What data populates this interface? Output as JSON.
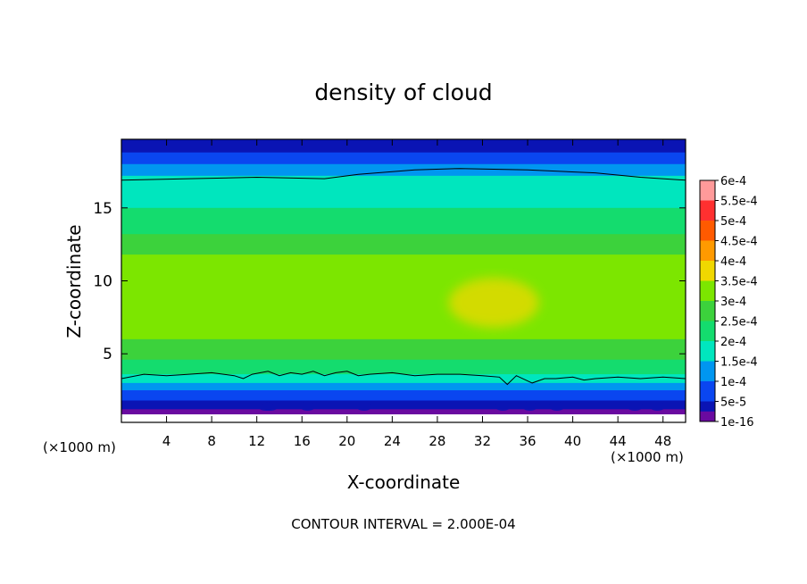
{
  "chart_data": {
    "type": "heatmap",
    "title": "density of cloud",
    "xlabel": "X-coordinate",
    "ylabel": "Z-coordinate",
    "x_unit_left": "(×1000 m)",
    "x_unit_right": "(×1000 m)",
    "xlim": [
      0,
      50
    ],
    "ylim": [
      0.3,
      19.7
    ],
    "x_ticks": [
      4,
      8,
      12,
      16,
      20,
      24,
      28,
      32,
      36,
      40,
      44,
      48
    ],
    "y_ticks": [
      5,
      10,
      15
    ],
    "footer": "CONTOUR INTERVAL = 2.000E-04",
    "colorbar": {
      "labels": [
        "6e-4",
        "5.5e-4",
        "5e-4",
        "4.5e-4",
        "4e-4",
        "3.5e-4",
        "3e-4",
        "2.5e-4",
        "2e-4",
        "1.5e-4",
        "1e-4",
        "5e-5",
        "1e-16"
      ],
      "colors": [
        "#ff9a9a",
        "#ff3030",
        "#ff5a00",
        "#ff9a00",
        "#f0d800",
        "#7ce600",
        "#3cd23c",
        "#14dc6e",
        "#00e6be",
        "#0096f0",
        "#0a46f0",
        "#0a14b4",
        "#6a0aa0"
      ],
      "levels": [
        0.0006,
        0.00055,
        0.0005,
        0.00045,
        0.0004,
        0.00035,
        0.0003,
        0.00025,
        0.0002,
        0.00015,
        0.0001,
        5e-05,
        1e-16
      ]
    },
    "field_bands": [
      {
        "z_from": 19.7,
        "z_to": 18.8,
        "value": 5e-05
      },
      {
        "z_from": 18.8,
        "z_to": 18.0,
        "value": 0.0001
      },
      {
        "z_from": 18.0,
        "z_to": 17.2,
        "value": 0.00015
      },
      {
        "z_from": 17.2,
        "z_to": 15.0,
        "value": 0.0002
      },
      {
        "z_from": 15.0,
        "z_to": 13.2,
        "value": 0.00025
      },
      {
        "z_from": 13.2,
        "z_to": 11.8,
        "value": 0.0003
      },
      {
        "z_from": 11.8,
        "z_to": 6.0,
        "value": 0.00035
      },
      {
        "z_from": 6.0,
        "z_to": 4.6,
        "value": 0.0003
      },
      {
        "z_from": 4.6,
        "z_to": 3.6,
        "value": 0.00025
      },
      {
        "z_from": 3.6,
        "z_to": 3.0,
        "value": 0.0002
      },
      {
        "z_from": 3.0,
        "z_to": 2.5,
        "value": 0.00015
      },
      {
        "z_from": 2.5,
        "z_to": 1.8,
        "value": 0.0001
      },
      {
        "z_from": 1.8,
        "z_to": 1.2,
        "value": 5e-05
      },
      {
        "z_from": 1.2,
        "z_to": 0.85,
        "value": 1e-16
      }
    ],
    "local_max_region": {
      "x_center": 33,
      "z_center": 8.5,
      "x_radius": 4,
      "z_radius": 1.7,
      "value": 0.0004
    },
    "upper_contour": {
      "value": 0.0002,
      "x": [
        0,
        6,
        12,
        18,
        21,
        26,
        30,
        36,
        42,
        46,
        50
      ],
      "z": [
        16.9,
        17.0,
        17.1,
        17.0,
        17.3,
        17.6,
        17.7,
        17.6,
        17.4,
        17.1,
        16.9
      ]
    },
    "lower_contour": {
      "value": 0.0002,
      "x": [
        0,
        2,
        4,
        6,
        8,
        10,
        10.8,
        11.6,
        13,
        14,
        15,
        16,
        17,
        18,
        19,
        20,
        21,
        22,
        24,
        26,
        28,
        30,
        32,
        33.5,
        34.2,
        35,
        36.4,
        37.5,
        38.5,
        40,
        41,
        42,
        44,
        46,
        48,
        50
      ],
      "z": [
        3.3,
        3.6,
        3.5,
        3.6,
        3.7,
        3.5,
        3.3,
        3.6,
        3.8,
        3.5,
        3.7,
        3.6,
        3.8,
        3.5,
        3.7,
        3.8,
        3.5,
        3.6,
        3.7,
        3.5,
        3.6,
        3.6,
        3.5,
        3.4,
        2.9,
        3.5,
        3.0,
        3.3,
        3.3,
        3.4,
        3.2,
        3.3,
        3.4,
        3.3,
        3.4,
        3.3
      ]
    }
  }
}
